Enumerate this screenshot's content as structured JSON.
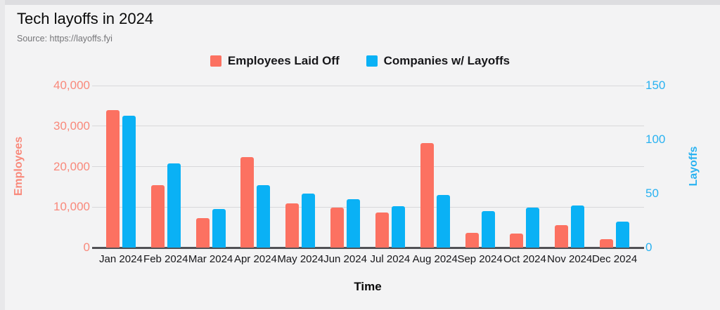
{
  "page": {
    "title": "Tech layoffs in 2024",
    "source": "Source: https://layoffs.fyi"
  },
  "legend": [
    {
      "label": "Employees Laid Off",
      "color": "#fc7161"
    },
    {
      "label": "Companies w/ Layoffs",
      "color": "#0ab1f5"
    }
  ],
  "chart_data": {
    "type": "bar",
    "title": "Tech layoffs in 2024",
    "subtitle": "Source: https://layoffs.fyi",
    "categories": [
      "Jan 2024",
      "Feb 2024",
      "Mar 2024",
      "Apr 2024",
      "May 2024",
      "Jun 2024",
      "Jul 2024",
      "Aug 2024",
      "Sep 2024",
      "Oct 2024",
      "Nov 2024",
      "Dec 2024"
    ],
    "series": [
      {
        "name": "Employees Laid Off",
        "axis": "left",
        "color": "#fc7161",
        "values": [
          34000,
          15400,
          7200,
          22400,
          10900,
          9800,
          8700,
          25800,
          3700,
          3400,
          5600,
          2000
        ]
      },
      {
        "name": "Companies w/ Layoffs",
        "axis": "right",
        "color": "#0ab1f5",
        "values": [
          122,
          78,
          36,
          58,
          50,
          45,
          38,
          49,
          34,
          37,
          39,
          24
        ]
      }
    ],
    "left_axis": {
      "label": "Employees",
      "min": 0,
      "max": 40000,
      "color": "#f9897b",
      "ticks": [
        {
          "label": "40,000",
          "value": 40000
        },
        {
          "label": "30,000",
          "value": 30000
        },
        {
          "label": "20,000",
          "value": 20000
        },
        {
          "label": "10,000",
          "value": 10000
        },
        {
          "label": "0",
          "value": 0
        }
      ]
    },
    "right_axis": {
      "label": "Layoffs",
      "min": 0,
      "max": 150,
      "color": "#29b2f1",
      "ticks": [
        {
          "label": "150",
          "value": 150
        },
        {
          "label": "100",
          "value": 100
        },
        {
          "label": "50",
          "value": 50
        },
        {
          "label": "0",
          "value": 0
        }
      ]
    },
    "x_axis": {
      "label": "Time"
    },
    "grid": true,
    "legend_position": "top"
  }
}
